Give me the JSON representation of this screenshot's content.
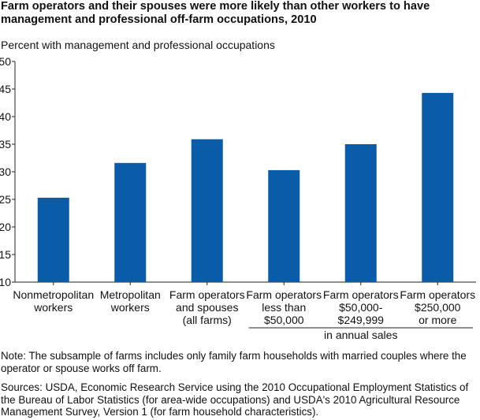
{
  "title": "Farm operators and their spouses were more likely than other workers to have management and professional off-farm occupations, 2010",
  "chart_data": {
    "type": "bar",
    "title": "Farm operators and their spouses were more likely than other workers to have management and professional off-farm occupations, 2010",
    "ylabel": "Percent with management and professional occupations",
    "xlabel": "",
    "ylim": [
      10,
      50
    ],
    "yticks": [
      "10",
      "15",
      "20",
      "25",
      "30",
      "35",
      "40",
      "45",
      "50"
    ],
    "categories": [
      [
        "Nonmetropolitan",
        "workers"
      ],
      [
        "Metropolitan",
        "workers"
      ],
      [
        "Farm operators",
        "and spouses",
        "(all farms)"
      ],
      [
        "Farm operators",
        "less than",
        "$50,000"
      ],
      [
        "Farm operators",
        "$50,000-",
        "$249,999"
      ],
      [
        "Farm operators",
        "$250,000",
        "or more"
      ]
    ],
    "values": [
      25.3,
      31.6,
      35.9,
      30.3,
      35.0,
      44.3
    ],
    "group_label": "in annual sales",
    "bar_color": "#0b5ca8",
    "grid": false,
    "legend": "none"
  },
  "note": "Note: The subsample of farms includes only family farm households with married couples where the operator or spouse works off farm.",
  "sources": "Sources: USDA, Economic Research Service using the 2010 Occupational Employment Statistics of the Bureau of Labor Statistics (for area-wide occupations) and USDA's 2010 Agricultural Resource Management Survey, Version 1 (for farm household characteristics)."
}
